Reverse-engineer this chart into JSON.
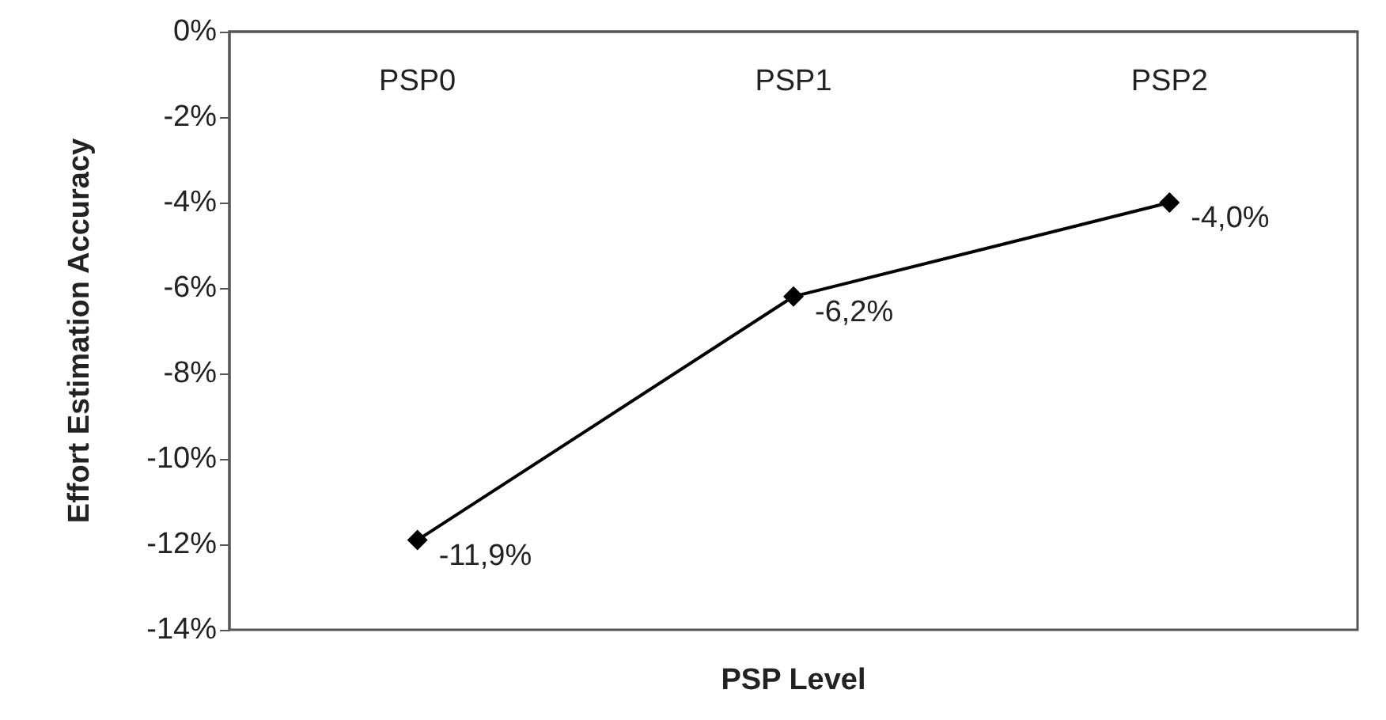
{
  "chart_data": {
    "type": "line",
    "xlabel": "PSP Level",
    "ylabel": "Effort Estimation Accuracy",
    "categories": [
      "PSP0",
      "PSP1",
      "PSP2"
    ],
    "series": [
      {
        "color": "#000000",
        "values": [
          -11.9,
          -6.2,
          -4.0
        ],
        "value_labels": [
          "-11,9%",
          "-6,2%",
          "-4,0%"
        ]
      }
    ],
    "ylim": [
      -14,
      0
    ],
    "yticks": [
      {
        "value": 0,
        "label": "0%"
      },
      {
        "value": -2,
        "label": "-2%"
      },
      {
        "value": -4,
        "label": "-4%"
      },
      {
        "value": -6,
        "label": "-6%"
      },
      {
        "value": -8,
        "label": "-8%"
      },
      {
        "value": -10,
        "label": "-10%"
      },
      {
        "value": -12,
        "label": "-12%"
      },
      {
        "value": -14,
        "label": "-14%"
      }
    ],
    "grid": false,
    "marker": "diamond",
    "line_style": "solid"
  }
}
